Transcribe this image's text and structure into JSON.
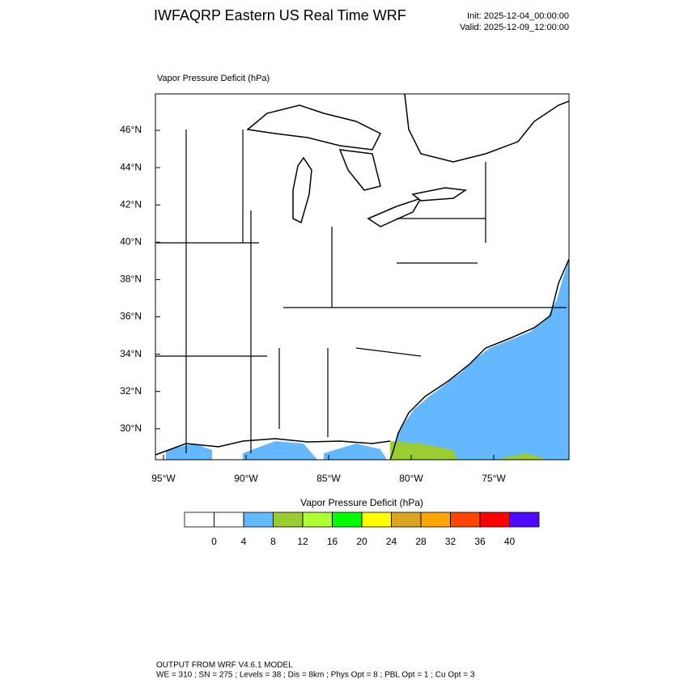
{
  "header": {
    "title": "IWFAQRP Eastern US Real Time WRF",
    "init": "Init: 2025-12-04_00:00:00",
    "valid": "Valid: 2025-12-09_12:00:00"
  },
  "map": {
    "field_label": "Vapor Pressure Deficit   (hPa)",
    "lat_labels": [
      "46°N",
      "44°N",
      "42°N",
      "40°N",
      "38°N",
      "36°N",
      "34°N",
      "32°N",
      "30°N"
    ],
    "lon_labels": [
      "95°W",
      "90°W",
      "85°W",
      "80°W",
      "75°W"
    ]
  },
  "colorbar": {
    "title": "Vapor Pressure Deficit  (hPa)",
    "levels": [
      0,
      4,
      8,
      12,
      16,
      20,
      24,
      28,
      32,
      36,
      40
    ],
    "colors": [
      "#ffffff",
      "#ffffff",
      "#63b8ff",
      "#9acd32",
      "#adff2f",
      "#00ff00",
      "#ffff00",
      "#daa520",
      "#ffa500",
      "#ff4500",
      "#ff0000",
      "#4b0aff"
    ]
  },
  "footer": {
    "line1": "OUTPUT FROM WRF V4.6.1 MODEL",
    "line2": "WE = 310 ; SN = 275 ; Levels = 38 ; Dis = 8km ; Phys Opt = 8 ; PBL Opt = 1 ; Cu Opt = 3"
  }
}
